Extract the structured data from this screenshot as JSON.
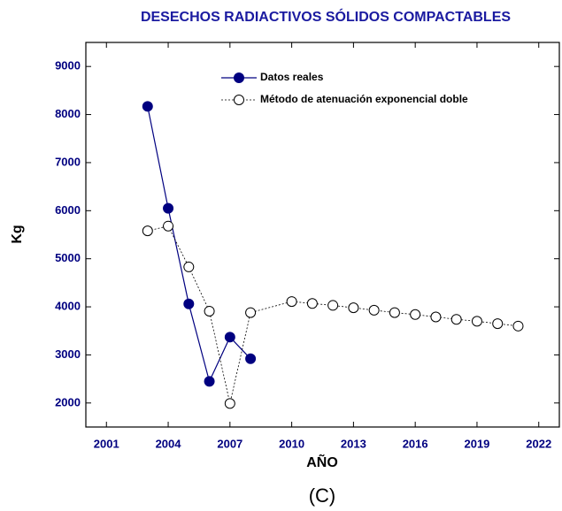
{
  "chart_data": {
    "type": "line",
    "title": "DESECHOS RADIACTIVOS SÓLIDOS COMPACTABLES",
    "x_label": "AÑO",
    "y_label": "Kg",
    "caption": "(C)",
    "xlim": [
      2000,
      2023
    ],
    "xticks": [
      2001,
      2004,
      2007,
      2010,
      2013,
      2016,
      2019,
      2022
    ],
    "ylim": [
      1500,
      9500
    ],
    "yticks": [
      2000,
      3000,
      4000,
      5000,
      6000,
      7000,
      8000,
      9000
    ],
    "legend": "upper center",
    "series": [
      {
        "name": "Datos reales",
        "color": "#000080",
        "marker": "filled",
        "x": [
          2003,
          2004,
          2005,
          2006,
          2007,
          2008
        ],
        "values": [
          8170,
          6050,
          4060,
          2450,
          3370,
          2920
        ]
      },
      {
        "name": "Método de atenuación exponencial doble",
        "color": "#000000",
        "marker": "open",
        "x": [
          2003,
          2004,
          2005,
          2006,
          2007,
          2008,
          2010,
          2011,
          2012,
          2013,
          2014,
          2015,
          2016,
          2017,
          2018,
          2019,
          2020,
          2021
        ],
        "values": [
          5580,
          5680,
          4830,
          3910,
          1990,
          3880,
          4110,
          4070,
          4030,
          3980,
          3930,
          3880,
          3840,
          3790,
          3740,
          3700,
          3650,
          3600
        ]
      }
    ]
  }
}
